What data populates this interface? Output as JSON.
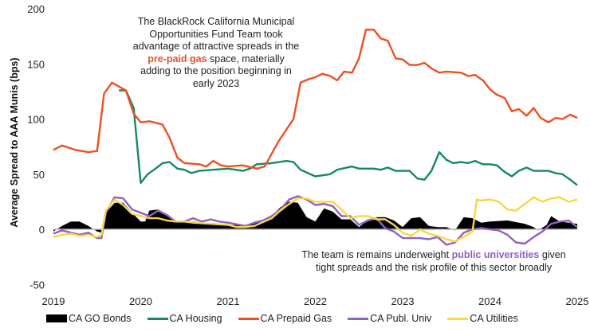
{
  "chart_data": {
    "type": "line",
    "title": "",
    "xlabel": "",
    "ylabel": "Average Spread to AAA Munis (bps)",
    "xlim": [
      2019,
      2025
    ],
    "ylim": [
      -50,
      200
    ],
    "x_ticks": [
      "2019",
      "2020",
      "2021",
      "2022",
      "2023",
      "2024",
      "2025"
    ],
    "y_ticks": [
      "200",
      "150",
      "100",
      "50",
      "0",
      "-50"
    ],
    "grid": false,
    "legend_position": "bottom",
    "series": [
      {
        "name": "CA GO Bonds",
        "style": "area",
        "color": "#000000",
        "points": [
          [
            2019.0,
            -2
          ],
          [
            2019.1,
            3
          ],
          [
            2019.2,
            7
          ],
          [
            2019.3,
            7
          ],
          [
            2019.4,
            3
          ],
          [
            2019.5,
            -2
          ],
          [
            2019.55,
            -3
          ],
          [
            2019.6,
            15
          ],
          [
            2019.7,
            24
          ],
          [
            2019.8,
            24
          ],
          [
            2019.9,
            15
          ],
          [
            2020.0,
            7
          ],
          [
            2020.05,
            7
          ],
          [
            2020.1,
            17
          ],
          [
            2020.2,
            18
          ],
          [
            2020.3,
            12
          ],
          [
            2020.4,
            7
          ],
          [
            2020.5,
            7
          ],
          [
            2020.6,
            7
          ],
          [
            2020.8,
            5
          ],
          [
            2021.0,
            4
          ],
          [
            2021.2,
            4
          ],
          [
            2021.3,
            5
          ],
          [
            2021.5,
            12
          ],
          [
            2021.6,
            20
          ],
          [
            2021.7,
            25
          ],
          [
            2021.8,
            24
          ],
          [
            2021.9,
            11
          ],
          [
            2022.0,
            7
          ],
          [
            2022.1,
            19
          ],
          [
            2022.2,
            16
          ],
          [
            2022.3,
            9
          ],
          [
            2022.4,
            9
          ],
          [
            2022.5,
            2
          ],
          [
            2022.6,
            8
          ],
          [
            2022.7,
            11
          ],
          [
            2022.8,
            11
          ],
          [
            2022.9,
            8
          ],
          [
            2023.0,
            2
          ],
          [
            2023.1,
            10
          ],
          [
            2023.2,
            11
          ],
          [
            2023.3,
            3
          ],
          [
            2023.4,
            2
          ],
          [
            2023.5,
            2
          ],
          [
            2023.6,
            -1
          ],
          [
            2023.7,
            11
          ],
          [
            2023.8,
            10
          ],
          [
            2023.9,
            6
          ],
          [
            2024.0,
            7
          ],
          [
            2024.2,
            8
          ],
          [
            2024.4,
            5
          ],
          [
            2024.5,
            2
          ],
          [
            2024.55,
            -1
          ],
          [
            2024.65,
            4
          ],
          [
            2024.7,
            12
          ],
          [
            2024.8,
            7
          ],
          [
            2025.0,
            5
          ]
        ]
      },
      {
        "name": "CA Housing",
        "style": "line",
        "color": "#138a5e",
        "points": [
          [
            2019.75,
            126
          ],
          [
            2019.83,
            126
          ],
          [
            2019.92,
            110
          ],
          [
            2020.0,
            42
          ],
          [
            2020.08,
            50
          ],
          [
            2020.17,
            55
          ],
          [
            2020.25,
            60
          ],
          [
            2020.33,
            61
          ],
          [
            2020.42,
            55
          ],
          [
            2020.5,
            54
          ],
          [
            2020.58,
            51
          ],
          [
            2020.67,
            53
          ],
          [
            2020.83,
            54
          ],
          [
            2021.0,
            55
          ],
          [
            2021.17,
            53
          ],
          [
            2021.25,
            55
          ],
          [
            2021.33,
            59
          ],
          [
            2021.5,
            60
          ],
          [
            2021.67,
            62
          ],
          [
            2021.75,
            61
          ],
          [
            2021.83,
            54
          ],
          [
            2022.0,
            48
          ],
          [
            2022.17,
            50
          ],
          [
            2022.25,
            54
          ],
          [
            2022.42,
            57
          ],
          [
            2022.5,
            55
          ],
          [
            2022.67,
            55
          ],
          [
            2022.75,
            54
          ],
          [
            2022.83,
            56
          ],
          [
            2022.92,
            53
          ],
          [
            2023.08,
            53
          ],
          [
            2023.17,
            46
          ],
          [
            2023.25,
            45
          ],
          [
            2023.33,
            53
          ],
          [
            2023.42,
            70
          ],
          [
            2023.5,
            63
          ],
          [
            2023.58,
            60
          ],
          [
            2023.67,
            61
          ],
          [
            2023.75,
            60
          ],
          [
            2023.83,
            62
          ],
          [
            2023.92,
            59
          ],
          [
            2024.0,
            59
          ],
          [
            2024.08,
            58
          ],
          [
            2024.17,
            52
          ],
          [
            2024.25,
            48
          ],
          [
            2024.33,
            53
          ],
          [
            2024.42,
            56
          ],
          [
            2024.5,
            53
          ],
          [
            2024.67,
            53
          ],
          [
            2024.75,
            51
          ],
          [
            2024.83,
            50
          ],
          [
            2024.92,
            45
          ],
          [
            2025.0,
            40
          ]
        ]
      },
      {
        "name": "CA Prepaid Gas",
        "style": "line",
        "color": "#f04e23",
        "points": [
          [
            2019.0,
            72
          ],
          [
            2019.1,
            76
          ],
          [
            2019.25,
            72
          ],
          [
            2019.4,
            70
          ],
          [
            2019.5,
            71
          ],
          [
            2019.58,
            123
          ],
          [
            2019.67,
            133
          ],
          [
            2019.83,
            126
          ],
          [
            2019.92,
            105
          ],
          [
            2020.0,
            97
          ],
          [
            2020.1,
            98
          ],
          [
            2020.25,
            95
          ],
          [
            2020.33,
            83
          ],
          [
            2020.42,
            65
          ],
          [
            2020.5,
            60
          ],
          [
            2020.67,
            59
          ],
          [
            2020.75,
            57
          ],
          [
            2020.83,
            62
          ],
          [
            2020.92,
            58
          ],
          [
            2021.0,
            57
          ],
          [
            2021.17,
            58
          ],
          [
            2021.33,
            55
          ],
          [
            2021.42,
            57
          ],
          [
            2021.58,
            80
          ],
          [
            2021.75,
            100
          ],
          [
            2021.83,
            133
          ],
          [
            2021.92,
            136
          ],
          [
            2022.0,
            138
          ],
          [
            2022.08,
            141
          ],
          [
            2022.17,
            139
          ],
          [
            2022.25,
            135
          ],
          [
            2022.33,
            143
          ],
          [
            2022.42,
            142
          ],
          [
            2022.5,
            155
          ],
          [
            2022.58,
            181
          ],
          [
            2022.67,
            181
          ],
          [
            2022.75,
            173
          ],
          [
            2022.83,
            171
          ],
          [
            2022.92,
            155
          ],
          [
            2023.0,
            154
          ],
          [
            2023.08,
            149
          ],
          [
            2023.17,
            149
          ],
          [
            2023.25,
            151
          ],
          [
            2023.33,
            146
          ],
          [
            2023.42,
            142
          ],
          [
            2023.5,
            143
          ],
          [
            2023.67,
            142
          ],
          [
            2023.75,
            139
          ],
          [
            2023.83,
            140
          ],
          [
            2023.92,
            135
          ],
          [
            2024.0,
            127
          ],
          [
            2024.08,
            122
          ],
          [
            2024.17,
            119
          ],
          [
            2024.25,
            107
          ],
          [
            2024.33,
            109
          ],
          [
            2024.42,
            103
          ],
          [
            2024.5,
            110
          ],
          [
            2024.58,
            101
          ],
          [
            2024.67,
            97
          ],
          [
            2024.75,
            101
          ],
          [
            2024.83,
            100
          ],
          [
            2024.92,
            104
          ],
          [
            2025.0,
            101
          ]
        ]
      },
      {
        "name": "CA Publ. Univ",
        "style": "line",
        "color": "#9061c2",
        "points": [
          [
            2019.0,
            -4
          ],
          [
            2019.1,
            -1
          ],
          [
            2019.2,
            -3
          ],
          [
            2019.3,
            -5
          ],
          [
            2019.4,
            -3
          ],
          [
            2019.5,
            -8
          ],
          [
            2019.55,
            -8
          ],
          [
            2019.6,
            15
          ],
          [
            2019.7,
            29
          ],
          [
            2019.8,
            28
          ],
          [
            2019.9,
            18
          ],
          [
            2020.0,
            15
          ],
          [
            2020.1,
            12
          ],
          [
            2020.2,
            17
          ],
          [
            2020.3,
            13
          ],
          [
            2020.4,
            7
          ],
          [
            2020.5,
            7
          ],
          [
            2020.6,
            10
          ],
          [
            2020.7,
            7
          ],
          [
            2020.8,
            9
          ],
          [
            2020.9,
            7
          ],
          [
            2021.0,
            6
          ],
          [
            2021.2,
            3
          ],
          [
            2021.3,
            6
          ],
          [
            2021.4,
            8
          ],
          [
            2021.5,
            12
          ],
          [
            2021.6,
            18
          ],
          [
            2021.7,
            27
          ],
          [
            2021.8,
            30
          ],
          [
            2021.9,
            27
          ],
          [
            2022.0,
            22
          ],
          [
            2022.1,
            23
          ],
          [
            2022.2,
            21
          ],
          [
            2022.3,
            12
          ],
          [
            2022.4,
            12
          ],
          [
            2022.5,
            4
          ],
          [
            2022.6,
            8
          ],
          [
            2022.7,
            10
          ],
          [
            2022.8,
            1
          ],
          [
            2022.9,
            -2
          ],
          [
            2023.0,
            -8
          ],
          [
            2023.1,
            -8
          ],
          [
            2023.2,
            -8
          ],
          [
            2023.3,
            -9
          ],
          [
            2023.4,
            -7
          ],
          [
            2023.5,
            -14
          ],
          [
            2023.6,
            -12
          ],
          [
            2023.7,
            -3
          ],
          [
            2023.8,
            0
          ],
          [
            2023.9,
            1
          ],
          [
            2024.0,
            0
          ],
          [
            2024.1,
            -1
          ],
          [
            2024.2,
            -5
          ],
          [
            2024.3,
            -12
          ],
          [
            2024.4,
            -13
          ],
          [
            2024.5,
            -7
          ],
          [
            2024.6,
            -2
          ],
          [
            2024.7,
            5
          ],
          [
            2024.8,
            7
          ],
          [
            2024.9,
            8
          ],
          [
            2025.0,
            2
          ]
        ]
      },
      {
        "name": "CA Utilities",
        "style": "line",
        "color": "#f7d843",
        "points": [
          [
            2019.0,
            -7
          ],
          [
            2019.1,
            -5
          ],
          [
            2019.2,
            -4
          ],
          [
            2019.3,
            -6
          ],
          [
            2019.4,
            -5
          ],
          [
            2019.5,
            -7
          ],
          [
            2019.55,
            -5
          ],
          [
            2019.6,
            17
          ],
          [
            2019.7,
            27
          ],
          [
            2019.8,
            22
          ],
          [
            2019.9,
            14
          ],
          [
            2020.0,
            12
          ],
          [
            2020.1,
            10
          ],
          [
            2020.2,
            10
          ],
          [
            2020.3,
            8
          ],
          [
            2020.4,
            7
          ],
          [
            2020.5,
            7
          ],
          [
            2020.6,
            6
          ],
          [
            2020.8,
            5
          ],
          [
            2021.0,
            4
          ],
          [
            2021.1,
            2
          ],
          [
            2021.2,
            2
          ],
          [
            2021.3,
            3
          ],
          [
            2021.5,
            10
          ],
          [
            2021.6,
            17
          ],
          [
            2021.7,
            23
          ],
          [
            2021.8,
            28
          ],
          [
            2021.9,
            28
          ],
          [
            2022.0,
            25
          ],
          [
            2022.1,
            25
          ],
          [
            2022.2,
            25
          ],
          [
            2022.3,
            18
          ],
          [
            2022.4,
            10
          ],
          [
            2022.5,
            12
          ],
          [
            2022.6,
            12
          ],
          [
            2022.7,
            9
          ],
          [
            2022.8,
            9
          ],
          [
            2022.9,
            4
          ],
          [
            2023.0,
            -3
          ],
          [
            2023.1,
            -6
          ],
          [
            2023.2,
            0
          ],
          [
            2023.3,
            -4
          ],
          [
            2023.4,
            -6
          ],
          [
            2023.5,
            -9
          ],
          [
            2023.6,
            -11
          ],
          [
            2023.7,
            -7
          ],
          [
            2023.8,
            -2
          ],
          [
            2023.85,
            27
          ],
          [
            2023.9,
            26
          ],
          [
            2024.0,
            27
          ],
          [
            2024.1,
            25
          ],
          [
            2024.2,
            18
          ],
          [
            2024.3,
            17
          ],
          [
            2024.4,
            23
          ],
          [
            2024.5,
            29
          ],
          [
            2024.6,
            25
          ],
          [
            2024.7,
            28
          ],
          [
            2024.8,
            29
          ],
          [
            2024.9,
            25
          ],
          [
            2025.0,
            27
          ]
        ]
      }
    ],
    "annotations": {
      "gas": {
        "before": "The BlackRock California Municipal Opportunities Fund Team took advantage of attractive spreads in the ",
        "highlight": "pre-paid gas",
        "after": " space, materially adding to the position beginning in early 2023"
      },
      "uni": {
        "before": "The team is remains underweight ",
        "highlight": "public universities",
        "after": " given tight spreads and the risk profile of this sector broadly"
      }
    }
  }
}
